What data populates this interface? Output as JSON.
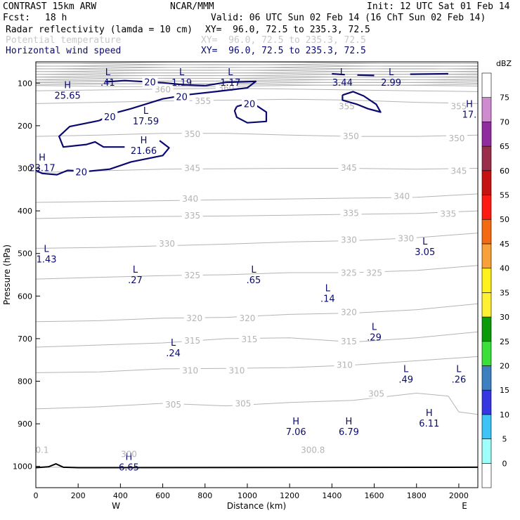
{
  "header": {
    "title": "CONTRAST 15km ARW",
    "center": "NCAR/MMM",
    "init": "Init: 12 UTC Sat 01 Feb 14",
    "fcst_label": "Fcst:",
    "fcst_value": "18 h",
    "valid": "Valid: 06 UTC Sun 02 Feb 14 (16 ChT Sun 02 Feb 14)",
    "fields": [
      {
        "name": "Radar reflectivity (lamda = 10 cm)",
        "xy": "XY=  96.0, 72.5 to 235.3, 72.5"
      },
      {
        "name": "Potential temperature",
        "xy": "XY=  96.0, 72.5 to 235.3, 72.5"
      },
      {
        "name": "Horizontal wind speed",
        "xy": "XY=  96.0, 72.5 to 235.3, 72.5"
      }
    ]
  },
  "colors": {
    "wind": "#0a0a6e",
    "theta": "#b4b4b4",
    "terrain": "#000000"
  },
  "chart_data": {
    "type": "cross-section",
    "xlabel": "Distance (km)",
    "ylabel": "Pressure (hPa)",
    "xlim": [
      0,
      2090
    ],
    "ylim": [
      1050,
      50
    ],
    "x_ticks": [
      0,
      200,
      400,
      600,
      800,
      1000,
      1200,
      1400,
      1600,
      1800,
      2000
    ],
    "y_ticks": [
      100,
      200,
      300,
      400,
      500,
      600,
      700,
      800,
      900,
      1000
    ],
    "x_end_labels": {
      "left": "W",
      "right": "E"
    },
    "colorbar": {
      "unit": "dBZ",
      "levels": [
        "0",
        "5",
        "10",
        "15",
        "20",
        "25",
        "30",
        "35",
        "40",
        "45",
        "50",
        "55",
        "60",
        "65",
        "70",
        "75"
      ],
      "colors": [
        "#ffffff",
        "#9ffffa",
        "#3dc3f6",
        "#3535e2",
        "#3d7fbf",
        "#3adf3a",
        "#0a9a0a",
        "#fff033",
        "#fff11c",
        "#f7a13a",
        "#f46a13",
        "#fc1a13",
        "#c71212",
        "#9a2d49",
        "#8f2d9f",
        "#cf8bcf",
        "#ffffff"
      ]
    },
    "theta_contours": [
      {
        "level": 300.8,
        "p": [
          [
            0,
            1002
          ],
          [
            2090,
            1002
          ]
        ],
        "labels": [
          {
            "text": "300.8",
            "x": 1310,
            "p": 962
          }
        ]
      },
      {
        "level": 305,
        "p": [
          [
            0,
            865
          ],
          [
            300,
            860
          ],
          [
            600,
            852
          ],
          [
            900,
            858
          ],
          [
            1200,
            850
          ],
          [
            1500,
            845
          ],
          [
            1800,
            828
          ],
          [
            1950,
            835
          ],
          [
            2000,
            872
          ],
          [
            2090,
            878
          ]
        ],
        "labels": [
          {
            "text": "305",
            "x": 650,
            "p": 855
          },
          {
            "text": "305",
            "x": 980,
            "p": 853
          },
          {
            "text": "305",
            "x": 1610,
            "p": 830
          }
        ]
      },
      {
        "level": 310,
        "p": [
          [
            0,
            780
          ],
          [
            300,
            778
          ],
          [
            600,
            771
          ],
          [
            900,
            770
          ],
          [
            1200,
            768
          ],
          [
            1500,
            762
          ],
          [
            1800,
            752
          ],
          [
            2090,
            742
          ]
        ],
        "labels": [
          {
            "text": "310",
            "x": 730,
            "p": 775
          },
          {
            "text": "310",
            "x": 950,
            "p": 775
          },
          {
            "text": "310",
            "x": 1460,
            "p": 762
          }
        ]
      },
      {
        "level": 315,
        "p": [
          [
            0,
            720
          ],
          [
            300,
            715
          ],
          [
            600,
            710
          ],
          [
            900,
            700
          ],
          [
            1200,
            698
          ],
          [
            1500,
            708
          ],
          [
            1800,
            698
          ],
          [
            2090,
            684
          ]
        ],
        "labels": [
          {
            "text": "315",
            "x": 740,
            "p": 705
          },
          {
            "text": "315",
            "x": 1010,
            "p": 702
          },
          {
            "text": "315",
            "x": 1480,
            "p": 707
          }
        ]
      },
      {
        "level": 320,
        "p": [
          [
            0,
            660
          ],
          [
            300,
            658
          ],
          [
            600,
            652
          ],
          [
            900,
            650
          ],
          [
            1200,
            643
          ],
          [
            1500,
            640
          ],
          [
            1800,
            632
          ],
          [
            2090,
            618
          ]
        ],
        "labels": [
          {
            "text": "320",
            "x": 750,
            "p": 652
          },
          {
            "text": "320",
            "x": 1000,
            "p": 652
          },
          {
            "text": "320",
            "x": 1480,
            "p": 638
          }
        ]
      },
      {
        "level": 325,
        "p": [
          [
            0,
            560
          ],
          [
            300,
            556
          ],
          [
            600,
            552
          ],
          [
            900,
            550
          ],
          [
            1200,
            545
          ],
          [
            1500,
            545
          ],
          [
            1800,
            540
          ],
          [
            2090,
            528
          ]
        ],
        "labels": [
          {
            "text": "325",
            "x": 740,
            "p": 552
          },
          {
            "text": "325",
            "x": 1480,
            "p": 546
          },
          {
            "text": "325",
            "x": 1600,
            "p": 546
          }
        ]
      },
      {
        "level": 330,
        "p": [
          [
            0,
            488
          ],
          [
            300,
            486
          ],
          [
            600,
            482
          ],
          [
            900,
            478
          ],
          [
            1200,
            473
          ],
          [
            1500,
            470
          ],
          [
            1800,
            463
          ],
          [
            2090,
            452
          ]
        ],
        "labels": [
          {
            "text": "330",
            "x": 620,
            "p": 477
          },
          {
            "text": "330",
            "x": 1480,
            "p": 468
          },
          {
            "text": "330",
            "x": 1750,
            "p": 465
          }
        ]
      },
      {
        "level": 335,
        "p": [
          [
            0,
            418
          ],
          [
            300,
            415
          ],
          [
            600,
            413
          ],
          [
            900,
            412
          ],
          [
            1200,
            410
          ],
          [
            1500,
            408
          ],
          [
            1800,
            406
          ],
          [
            2090,
            400
          ]
        ],
        "labels": [
          {
            "text": "335",
            "x": 740,
            "p": 411
          },
          {
            "text": "335",
            "x": 1490,
            "p": 406
          },
          {
            "text": "335",
            "x": 1950,
            "p": 407
          }
        ]
      },
      {
        "level": 340,
        "p": [
          [
            0,
            380
          ],
          [
            300,
            378
          ],
          [
            600,
            376
          ],
          [
            900,
            374
          ],
          [
            1200,
            372
          ],
          [
            1500,
            370
          ],
          [
            1800,
            368
          ],
          [
            2090,
            360
          ]
        ],
        "labels": [
          {
            "text": "340",
            "x": 730,
            "p": 372
          },
          {
            "text": "340",
            "x": 1730,
            "p": 366
          }
        ]
      },
      {
        "level": 345,
        "p": [
          [
            0,
            310
          ],
          [
            300,
            306
          ],
          [
            600,
            302
          ],
          [
            900,
            301
          ],
          [
            1200,
            300
          ],
          [
            1500,
            300
          ],
          [
            1800,
            302
          ],
          [
            2090,
            300
          ]
        ],
        "labels": [
          {
            "text": "345",
            "x": 740,
            "p": 300
          },
          {
            "text": "345",
            "x": 1480,
            "p": 299
          },
          {
            "text": "345",
            "x": 2000,
            "p": 307
          }
        ]
      },
      {
        "level": 350,
        "p": [
          [
            0,
            225
          ],
          [
            300,
            222
          ],
          [
            600,
            218
          ],
          [
            900,
            218
          ],
          [
            1200,
            222
          ],
          [
            1500,
            225
          ],
          [
            1800,
            225
          ],
          [
            2090,
            222
          ]
        ],
        "labels": [
          {
            "text": "350",
            "x": 740,
            "p": 220
          },
          {
            "text": "350",
            "x": 1490,
            "p": 225
          },
          {
            "text": "350",
            "x": 1990,
            "p": 230
          }
        ]
      },
      {
        "level": 355,
        "p": [
          [
            0,
            148
          ],
          [
            300,
            145
          ],
          [
            600,
            142
          ],
          [
            900,
            140
          ],
          [
            1200,
            138
          ],
          [
            1500,
            140
          ],
          [
            1800,
            145
          ],
          [
            2090,
            148
          ]
        ],
        "labels": [
          {
            "text": "355",
            "x": 790,
            "p": 142
          },
          {
            "text": "355",
            "x": 1470,
            "p": 155
          },
          {
            "text": "355",
            "x": 2000,
            "p": 155
          }
        ]
      },
      {
        "level": 360,
        "p": [
          [
            0,
            118
          ],
          [
            300,
            116
          ],
          [
            600,
            114
          ],
          [
            900,
            112
          ],
          [
            1200,
            114
          ],
          [
            1500,
            116
          ],
          [
            1800,
            118
          ],
          [
            2090,
            120
          ]
        ],
        "labels": [
          {
            "text": "360",
            "x": 600,
            "p": 115
          },
          {
            "text": "360",
            "x": 900,
            "p": 112
          }
        ]
      }
    ],
    "wind_contours": [
      {
        "level": 20,
        "p": [
          [
            330,
            97
          ],
          [
            420,
            94
          ],
          [
            600,
            99
          ],
          [
            700,
            104
          ],
          [
            800,
            106
          ]
        ],
        "labels": [
          {
            "text": "20",
            "x": 540,
            "p": 99
          }
        ]
      },
      {
        "level": 20,
        "p": [
          [
            300,
            188
          ],
          [
            360,
            172
          ],
          [
            450,
            160
          ],
          [
            600,
            137
          ],
          [
            720,
            127
          ],
          [
            850,
            120
          ],
          [
            1000,
            111
          ],
          [
            1040,
            96
          ],
          [
            900,
            98
          ],
          [
            800,
            106
          ]
        ],
        "labels": [
          {
            "text": "20",
            "x": 350,
            "p": 180
          },
          {
            "text": "20",
            "x": 690,
            "p": 133
          }
        ]
      },
      {
        "level": 20,
        "p": [
          [
            300,
            188
          ],
          [
            160,
            202
          ],
          [
            110,
            225
          ],
          [
            130,
            250
          ],
          [
            240,
            244
          ],
          [
            280,
            238
          ],
          [
            320,
            250
          ],
          [
            420,
            250
          ]
        ],
        "labels": []
      },
      {
        "level": 20,
        "p": [
          [
            0,
            305
          ],
          [
            30,
            312
          ],
          [
            100,
            315
          ],
          [
            150,
            305
          ],
          [
            250,
            307
          ],
          [
            350,
            302
          ],
          [
            450,
            285
          ],
          [
            600,
            270
          ],
          [
            630,
            252
          ],
          [
            585,
            235
          ]
        ],
        "labels": [
          {
            "text": "20",
            "x": 215,
            "p": 310
          }
        ]
      },
      {
        "level": 20,
        "p": [
          [
            950,
            155
          ],
          [
            1020,
            145
          ],
          [
            1090,
            168
          ],
          [
            1090,
            190
          ],
          [
            1000,
            193
          ],
          [
            950,
            180
          ],
          [
            940,
            165
          ],
          [
            950,
            155
          ]
        ],
        "labels": [
          {
            "text": "20",
            "x": 1010,
            "p": 150
          }
        ]
      },
      {
        "level": 20,
        "p": [
          [
            1450,
            128
          ],
          [
            1500,
            120
          ],
          [
            1550,
            130
          ],
          [
            1610,
            150
          ],
          [
            1630,
            168
          ],
          [
            1570,
            160
          ],
          [
            1520,
            150
          ],
          [
            1450,
            140
          ],
          [
            1450,
            128
          ]
        ],
        "labels": []
      },
      {
        "level": 20,
        "p": [
          [
            1400,
            78
          ],
          [
            1460,
            80
          ]
        ],
        "labels": []
      },
      {
        "level": 20,
        "p": [
          [
            1520,
            81
          ],
          [
            1600,
            82
          ]
        ],
        "labels": []
      },
      {
        "level": 20,
        "p": [
          [
            1770,
            79
          ],
          [
            1950,
            78
          ]
        ],
        "labels": []
      }
    ],
    "wind_extrema": [
      {
        "kind": "L",
        "value": ".41",
        "x": 340,
        "p": 85
      },
      {
        "kind": "L",
        "value": "1.19",
        "x": 690,
        "p": 85
      },
      {
        "kind": "L",
        "value": "1.17",
        "x": 920,
        "p": 85
      },
      {
        "kind": "L",
        "value": "3.44",
        "x": 1450,
        "p": 85
      },
      {
        "kind": "L",
        "value": "2.99",
        "x": 1680,
        "p": 85
      },
      {
        "kind": "H",
        "value": "25.65",
        "x": 150,
        "p": 115
      },
      {
        "kind": "L",
        "value": "17.59",
        "x": 520,
        "p": 175
      },
      {
        "kind": "H",
        "value": "17.",
        "x": 2050,
        "p": 160
      },
      {
        "kind": "H",
        "value": "21.66",
        "x": 510,
        "p": 245
      },
      {
        "kind": "H",
        "value": "23.17",
        "x": 20,
        "p": 285
      },
      {
        "kind": "L",
        "value": "1.43",
        "x": 50,
        "p": 500
      },
      {
        "kind": "L",
        "value": "3.05",
        "x": 1840,
        "p": 482
      },
      {
        "kind": "L",
        "value": ".27",
        "x": 470,
        "p": 548
      },
      {
        "kind": "L",
        "value": ".65",
        "x": 1030,
        "p": 548
      },
      {
        "kind": "L",
        "value": ".14",
        "x": 1380,
        "p": 592
      },
      {
        "kind": "L",
        "value": ".29",
        "x": 1600,
        "p": 683
      },
      {
        "kind": "L",
        "value": ".24",
        "x": 650,
        "p": 720
      },
      {
        "kind": "L",
        "value": ".49",
        "x": 1750,
        "p": 782
      },
      {
        "kind": "L",
        "value": ".26",
        "x": 2000,
        "p": 782
      },
      {
        "kind": "H",
        "value": "6.11",
        "x": 1860,
        "p": 885
      },
      {
        "kind": "H",
        "value": "7.06",
        "x": 1230,
        "p": 905
      },
      {
        "kind": "H",
        "value": "6.79",
        "x": 1480,
        "p": 905
      },
      {
        "kind": "H",
        "value": "6.65",
        "x": 440,
        "p": 988
      }
    ],
    "edge_labels": [
      {
        "text": "0.1",
        "x": 20,
        "p": 968
      },
      {
        "text": "300",
        "x": 440,
        "p": 978
      }
    ],
    "terrain": [
      [
        0,
        1003
      ],
      [
        60,
        1001
      ],
      [
        95,
        994
      ],
      [
        130,
        1002
      ],
      [
        200,
        1003
      ],
      [
        2090,
        1002
      ]
    ]
  }
}
